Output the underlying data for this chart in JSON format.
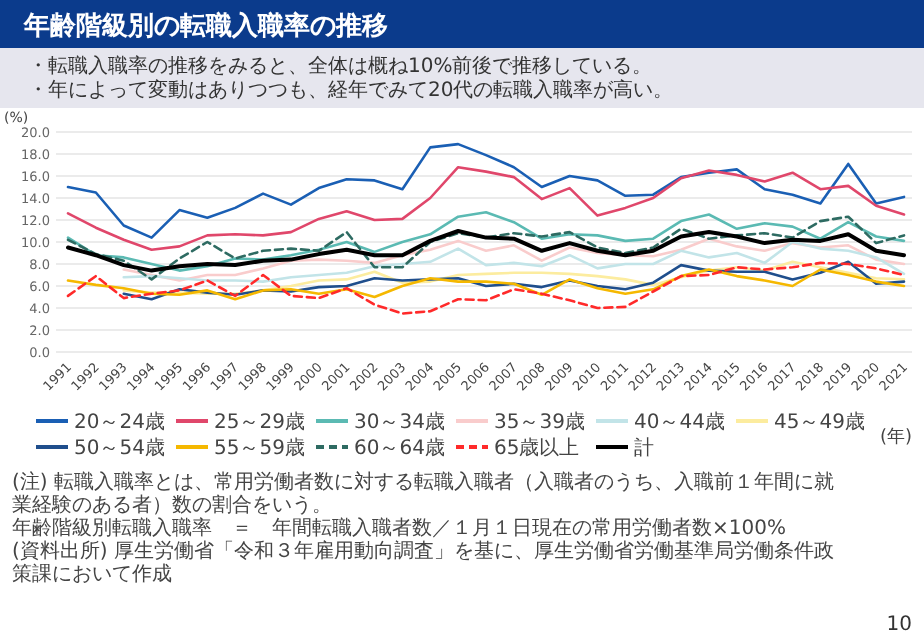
{
  "chart_data": {
    "type": "line",
    "title": "年齢階級別の転職入職率の推移",
    "subtitle": "・転職入職率の推移をみると、全体は概ね10%前後で推移している。",
    "ylabel": "(%)",
    "xlabel": "(年)",
    "categories": [
      "1991",
      "1992",
      "1993",
      "1994",
      "1995",
      "1996",
      "1997",
      "1998",
      "1999",
      "2000",
      "2001",
      "2002",
      "2003",
      "2004",
      "2005",
      "2006",
      "2007",
      "2008",
      "2009",
      "2010",
      "2011",
      "2012",
      "2013",
      "2014",
      "2015",
      "2016",
      "2017",
      "2018",
      "2019",
      "2020",
      "2021"
    ],
    "ylim": [
      0,
      20
    ],
    "yticks": [
      {
        "value": 0,
        "label": "0.0"
      },
      {
        "value": 2,
        "label": "2.0"
      },
      {
        "value": 4,
        "label": "4.0"
      },
      {
        "value": 6,
        "label": "6.0"
      },
      {
        "value": 8,
        "label": "8.0"
      },
      {
        "value": 10,
        "label": "10.0"
      },
      {
        "value": 12,
        "label": "12.0"
      },
      {
        "value": 14,
        "label": "14.0"
      },
      {
        "value": 16,
        "label": "16.0"
      },
      {
        "value": 18,
        "label": "18.0"
      },
      {
        "value": 20,
        "label": "20.0"
      }
    ],
    "grid": "y",
    "legend": "bottom",
    "marker": "none",
    "series": [
      {
        "name": "20～24歳",
        "color": "#1a5fb4",
        "values": [
          15.0,
          14.5,
          11.5,
          10.4,
          12.9,
          12.2,
          13.1,
          14.4,
          13.4,
          14.9,
          15.7,
          15.6,
          14.8,
          18.6,
          18.9,
          17.9,
          16.8,
          15.0,
          16.0,
          15.6,
          14.2,
          14.3,
          15.9,
          16.3,
          16.6,
          14.8,
          14.3,
          13.5,
          17.1,
          13.5,
          14.1
        ]
      },
      {
        "name": "25～29歳",
        "color": "#e0476b",
        "values": [
          12.6,
          11.3,
          10.2,
          9.3,
          9.6,
          10.6,
          10.7,
          10.6,
          10.9,
          12.1,
          12.8,
          12.0,
          12.1,
          14.0,
          16.8,
          16.4,
          15.9,
          13.9,
          14.9,
          12.4,
          13.1,
          14.0,
          15.8,
          16.5,
          16.1,
          15.5,
          16.3,
          14.8,
          15.1,
          13.3,
          12.5
        ]
      },
      {
        "name": "30～34歳",
        "color": "#5bbab3",
        "values": [
          10.4,
          8.8,
          8.6,
          8.0,
          7.4,
          7.8,
          8.5,
          8.4,
          8.8,
          9.3,
          10.0,
          9.1,
          10.0,
          10.7,
          12.3,
          12.7,
          11.8,
          10.3,
          10.7,
          10.6,
          10.1,
          10.3,
          11.9,
          12.5,
          11.2,
          11.7,
          11.4,
          10.3,
          11.8,
          10.5,
          10.1
        ]
      },
      {
        "name": "35～39歳",
        "color": "#f9cccc",
        "values": [
          null,
          null,
          7.5,
          7.0,
          6.5,
          7.0,
          7.0,
          7.6,
          8.3,
          8.4,
          8.3,
          8.1,
          8.8,
          9.3,
          10.1,
          9.2,
          9.7,
          8.3,
          9.5,
          9.0,
          8.8,
          8.7,
          9.3,
          10.3,
          9.6,
          9.2,
          9.9,
          9.5,
          9.7,
          8.4,
          8.0
        ]
      },
      {
        "name": "40～44歳",
        "color": "#c2e4e8",
        "values": [
          null,
          null,
          6.8,
          6.9,
          6.7,
          6.5,
          6.5,
          6.4,
          6.8,
          7.0,
          7.2,
          7.8,
          8.0,
          8.2,
          9.4,
          7.9,
          8.1,
          7.8,
          8.8,
          7.6,
          8.0,
          8.0,
          9.2,
          8.6,
          9.0,
          8.1,
          10.0,
          9.4,
          9.2,
          8.6,
          7.1
        ]
      },
      {
        "name": "45～49歳",
        "color": "#fcec9f",
        "values": [
          null,
          null,
          5.6,
          5.4,
          5.4,
          5.3,
          5.3,
          5.6,
          6.0,
          6.5,
          6.6,
          7.3,
          6.3,
          6.4,
          7.0,
          7.1,
          7.2,
          7.2,
          7.1,
          6.9,
          6.6,
          6.1,
          6.8,
          7.4,
          7.7,
          7.4,
          8.2,
          7.7,
          7.2,
          6.7,
          6.6
        ]
      },
      {
        "name": "50～54歳",
        "color": "#1f4e8c",
        "values": [
          null,
          null,
          5.3,
          4.8,
          5.7,
          5.4,
          5.2,
          5.6,
          5.5,
          5.9,
          6.0,
          6.7,
          6.5,
          6.6,
          6.7,
          6.0,
          6.2,
          5.9,
          6.5,
          6.0,
          5.7,
          6.3,
          7.9,
          7.4,
          7.3,
          7.3,
          6.6,
          7.2,
          8.2,
          6.2,
          6.4
        ]
      },
      {
        "name": "55～59歳",
        "color": "#f5b800",
        "values": [
          6.5,
          6.1,
          5.8,
          5.3,
          5.2,
          5.6,
          4.8,
          5.6,
          5.7,
          5.3,
          5.7,
          5.0,
          6.0,
          6.7,
          6.4,
          6.4,
          6.2,
          5.2,
          6.6,
          5.8,
          5.3,
          5.7,
          6.9,
          7.5,
          6.9,
          6.5,
          6.0,
          7.5,
          7.0,
          6.4,
          6.0
        ]
      },
      {
        "name": "60～64歳",
        "color": "#2e6b62",
        "line_style": "dashed",
        "values": [
          10.2,
          8.9,
          8.3,
          6.6,
          8.5,
          10.0,
          8.5,
          9.2,
          9.4,
          9.2,
          10.9,
          7.7,
          7.7,
          10.0,
          10.8,
          10.4,
          10.8,
          10.5,
          10.9,
          9.5,
          9.0,
          9.5,
          11.2,
          10.3,
          10.6,
          10.8,
          10.4,
          11.9,
          12.3,
          9.9,
          10.6
        ]
      },
      {
        "name": "65歳以上",
        "color": "#ff2a2a",
        "line_style": "dashed",
        "values": [
          5.1,
          6.9,
          4.9,
          5.3,
          5.6,
          6.5,
          5.1,
          7.0,
          5.1,
          4.9,
          5.8,
          4.3,
          3.5,
          3.7,
          4.8,
          4.7,
          5.7,
          5.3,
          4.7,
          4.0,
          4.1,
          5.5,
          6.9,
          7.0,
          7.7,
          7.5,
          7.7,
          8.1,
          8.0,
          7.6,
          7.0
        ]
      },
      {
        "name": "計",
        "color": "#000000",
        "values": [
          9.5,
          8.8,
          7.9,
          7.4,
          7.8,
          8.0,
          7.9,
          8.3,
          8.4,
          8.9,
          9.3,
          8.8,
          8.8,
          10.1,
          11.0,
          10.4,
          10.3,
          9.2,
          9.9,
          9.2,
          8.8,
          9.2,
          10.5,
          10.9,
          10.5,
          9.9,
          10.2,
          10.1,
          10.7,
          9.2,
          8.8
        ]
      }
    ],
    "annotations": [
      "・年によって変動はありつつも、経年でみて20代の転職入職率が高い。",
      "(注) 転職入職率とは、常用労働者数に対する転職入職者（入職者のうち、入職前１年間に就業経験のある者）数の割合をいう。",
      "年齢階級別転職入職率　＝　年間転職入職者数／１月１日現在の常用労働者数×100%",
      "(資料出所) 厚生労働省「令和３年雇用動向調査」を基に、厚生労働省労働基準局労働条件政策課において作成",
      "10"
    ]
  }
}
